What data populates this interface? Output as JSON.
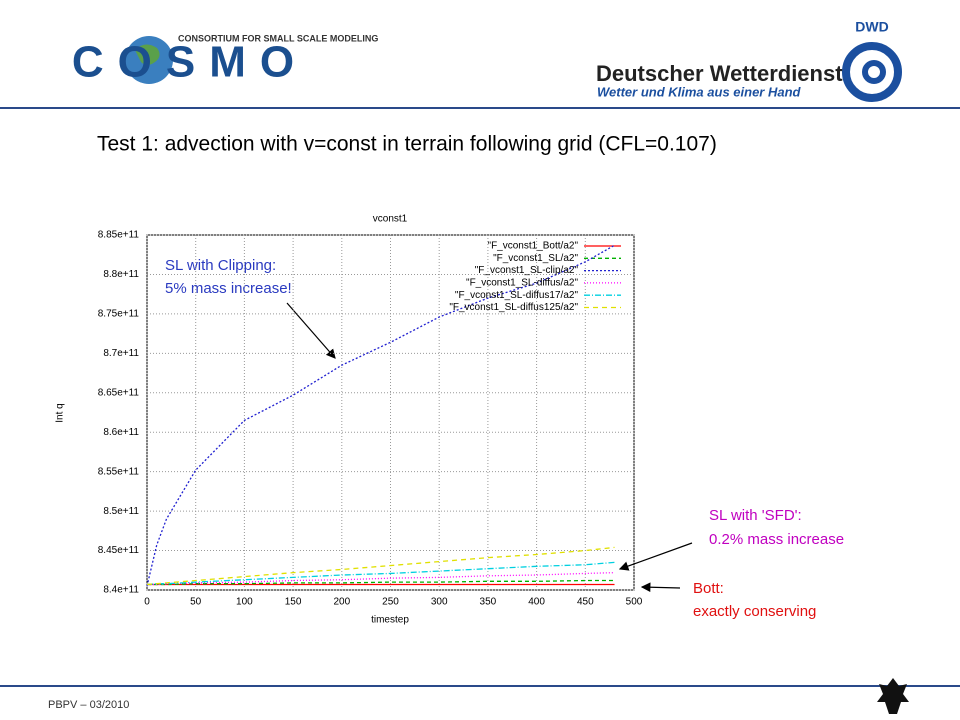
{
  "header": {
    "cosmo_tagline": "CONSORTIUM FOR SMALL SCALE MODELING",
    "cosmo_logo": "COSMO",
    "dwd_logo": "DWD",
    "dwd_name": "Deutscher Wetterdienst",
    "dwd_slogan": "Wetter und Klima aus einer Hand"
  },
  "heading": "Test 1: advection with v=const in terrain following grid (CFL=0.107)",
  "footer": "PBPV – 03/2010",
  "chart_data": {
    "type": "line",
    "title": "vconst1",
    "x_label": "timestep",
    "y_label": "Int q",
    "x": [
      0,
      10,
      20,
      50,
      100,
      150,
      200,
      250,
      300,
      350,
      400,
      450,
      480
    ],
    "series": [
      {
        "name": "\"F_vconst1_Bott/a2\"",
        "color": "#ff0000",
        "dash": "none",
        "values": [
          840700000000.0,
          840700000000.0,
          840700000000.0,
          840700000000.0,
          840700000000.0,
          840700000000.0,
          840700000000.0,
          840700000000.0,
          840700000000.0,
          840700000000.0,
          840700000000.0,
          840700000000.0,
          840700000000.0
        ]
      },
      {
        "name": "\"F_vconst1_SL/a2\"",
        "color": "#00b000",
        "dash": "4 3",
        "values": [
          840700000000.0,
          840700000000.0,
          840700000000.0,
          840800000000.0,
          840800000000.0,
          840900000000.0,
          840900000000.0,
          841000000000.0,
          841000000000.0,
          841100000000.0,
          841100000000.0,
          841200000000.0,
          841200000000.0
        ]
      },
      {
        "name": "\"F_vconst1_SL-clip/a2\"",
        "color": "#2020d0",
        "dash": "2 2",
        "values": [
          840500000000.0,
          845700000000.0,
          849000000000.0,
          855200000000.0,
          861500000000.0,
          864700000000.0,
          868500000000.0,
          871400000000.0,
          874600000000.0,
          877000000000.0,
          878900000000.0,
          881600000000.0,
          883700000000.0
        ]
      },
      {
        "name": "\"F_vconst1_SL-diffus/a2\"",
        "color": "#ff00ff",
        "dash": "1 2",
        "values": [
          840700000000.0,
          840700000000.0,
          840800000000.0,
          840900000000.0,
          841000000000.0,
          841200000000.0,
          841300000000.0,
          841500000000.0,
          841600000000.0,
          841800000000.0,
          841900000000.0,
          842100000000.0,
          842200000000.0
        ]
      },
      {
        "name": "\"F_vconst1_SL-diffus17/a2\"",
        "color": "#00d0e0",
        "dash": "6 2 1 2",
        "values": [
          840700000000.0,
          840800000000.0,
          840800000000.0,
          841000000000.0,
          841300000000.0,
          841600000000.0,
          841900000000.0,
          842100000000.0,
          842400000000.0,
          842700000000.0,
          843000000000.0,
          843200000000.0,
          843500000000.0
        ]
      },
      {
        "name": "\"F_vconst1_SL-diffus125/a2\"",
        "color": "#e0e000",
        "dash": "5 4",
        "values": [
          840700000000.0,
          840800000000.0,
          840900000000.0,
          841200000000.0,
          841700000000.0,
          842200000000.0,
          842600000000.0,
          843100000000.0,
          843600000000.0,
          844100000000.0,
          844500000000.0,
          845000000000.0,
          845400000000.0
        ]
      }
    ],
    "xlim": [
      0,
      500
    ],
    "xticks": [
      0,
      50,
      100,
      150,
      200,
      250,
      300,
      350,
      400,
      450,
      500
    ],
    "ylim": [
      840000000000.0,
      885000000000.0
    ],
    "yticks": [
      {
        "value": 840000000000.0,
        "label": "8.4e+11"
      },
      {
        "value": 845000000000.0,
        "label": "8.45e+11"
      },
      {
        "value": 850000000000.0,
        "label": "8.5e+11"
      },
      {
        "value": 855000000000.0,
        "label": "8.55e+11"
      },
      {
        "value": 860000000000.0,
        "label": "8.6e+11"
      },
      {
        "value": 865000000000.0,
        "label": "8.65e+11"
      },
      {
        "value": 870000000000.0,
        "label": "8.7e+11"
      },
      {
        "value": 875000000000.0,
        "label": "8.75e+11"
      },
      {
        "value": 880000000000.0,
        "label": "8.8e+11"
      },
      {
        "value": 885000000000.0,
        "label": "8.85e+11"
      }
    ],
    "grid": true,
    "legend": "top-right",
    "annotations": [
      {
        "lines": [
          "SL with Clipping:",
          "5% mass increase!"
        ]
      },
      {
        "lines": [
          "SL with 'SFD':",
          "0.2% mass increase"
        ]
      },
      {
        "lines": [
          "Bott:",
          "exactly conserving"
        ]
      }
    ]
  }
}
